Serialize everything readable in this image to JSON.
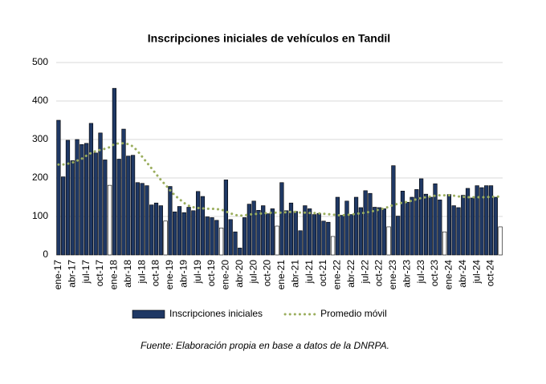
{
  "chart_data": {
    "type": "bar",
    "title": "Inscripciones iniciales de vehículos en Tandil",
    "source": "Fuente: Elaboración propia en base a datos de la DNRPA.",
    "categories": [
      "ene-17",
      null,
      null,
      "abr-17",
      null,
      null,
      "jul-17",
      null,
      null,
      "oct-17",
      null,
      null,
      "ene-18",
      null,
      null,
      "abr-18",
      null,
      null,
      "jul-18",
      null,
      null,
      "oct-18",
      null,
      null,
      "ene-19",
      null,
      null,
      "abr-19",
      null,
      null,
      "jul-19",
      null,
      null,
      "oct-19",
      null,
      null,
      "ene-20",
      null,
      null,
      "abr-20",
      null,
      null,
      "jul-20",
      null,
      null,
      "oct-20",
      null,
      null,
      "ene-21",
      null,
      null,
      "abr-21",
      null,
      null,
      "jul-21",
      null,
      null,
      "oct-21",
      null,
      null,
      "ene-22",
      null,
      null,
      "abr-22",
      null,
      null,
      "jul-22",
      null,
      null,
      "oct-22",
      null,
      null,
      "ene-23",
      null,
      null,
      "abr-23",
      null,
      null,
      "jul-23",
      null,
      null,
      "oct-23",
      null,
      null,
      "ene-24",
      null,
      null,
      "abr-24",
      null,
      null,
      "jul-24",
      null,
      null,
      "oct-24",
      null,
      null
    ],
    "series": [
      {
        "name": "Inscripciones iniciales",
        "type": "bar",
        "color": "#1f3864",
        "values": [
          350,
          203,
          298,
          245,
          300,
          287,
          290,
          342,
          265,
          317,
          247,
          181,
          433,
          249,
          327,
          257,
          259,
          188,
          186,
          180,
          130,
          135,
          128,
          88,
          178,
          112,
          126,
          110,
          124,
          115,
          165,
          152,
          99,
          97,
          90,
          70,
          195,
          92,
          60,
          18,
          97,
          132,
          140,
          116,
          128,
          107,
          120,
          75,
          188,
          115,
          135,
          113,
          63,
          128,
          120,
          105,
          108,
          88,
          85,
          48,
          150,
          103,
          140,
          105,
          150,
          123,
          167,
          160,
          124,
          123,
          120,
          73,
          232,
          101,
          166,
          137,
          150,
          170,
          198,
          158,
          150,
          185,
          143,
          60,
          157,
          128,
          123,
          155,
          173,
          148,
          180,
          175,
          180,
          180,
          150,
          73
        ],
        "colors": [
          "#1f3864",
          "#1f3864",
          "#1f3864",
          "#1f3864",
          "#1f3864",
          "#1f3864",
          "#1f3864",
          "#1f3864",
          "#1f3864",
          "#1f3864",
          "#1f3864",
          "#ffffff",
          "#1f3864",
          "#1f3864",
          "#1f3864",
          "#1f3864",
          "#1f3864",
          "#1f3864",
          "#1f3864",
          "#1f3864",
          "#1f3864",
          "#1f3864",
          "#1f3864",
          "#ffffff",
          "#1f3864",
          "#1f3864",
          "#1f3864",
          "#1f3864",
          "#1f3864",
          "#1f3864",
          "#1f3864",
          "#1f3864",
          "#1f3864",
          "#1f3864",
          "#1f3864",
          "#ffffff",
          "#1f3864",
          "#1f3864",
          "#1f3864",
          "#1f3864",
          "#1f3864",
          "#1f3864",
          "#1f3864",
          "#1f3864",
          "#1f3864",
          "#1f3864",
          "#1f3864",
          "#ffffff",
          "#1f3864",
          "#1f3864",
          "#1f3864",
          "#1f3864",
          "#1f3864",
          "#1f3864",
          "#1f3864",
          "#1f3864",
          "#1f3864",
          "#1f3864",
          "#1f3864",
          "#ffffff",
          "#1f3864",
          "#1f3864",
          "#1f3864",
          "#1f3864",
          "#1f3864",
          "#1f3864",
          "#1f3864",
          "#1f3864",
          "#1f3864",
          "#1f3864",
          "#1f3864",
          "#ffffff",
          "#1f3864",
          "#1f3864",
          "#1f3864",
          "#1f3864",
          "#1f3864",
          "#1f3864",
          "#1f3864",
          "#1f3864",
          "#1f3864",
          "#1f3864",
          "#1f3864",
          "#ffffff",
          "#1f3864",
          "#1f3864",
          "#1f3864",
          "#1f3864",
          "#1f3864",
          "#1f3864",
          "#1f3864",
          "#1f3864",
          "#1f3864",
          "#1f3864",
          "#1f3864",
          "#ffffff"
        ]
      },
      {
        "name": "Promedio móvil",
        "type": "line",
        "color": "#9bae5e",
        "values": [
          235,
          235,
          237,
          240,
          245,
          250,
          258,
          265,
          270,
          273,
          276,
          280,
          288,
          290,
          290,
          288,
          282,
          270,
          255,
          240,
          225,
          210,
          195,
          182,
          168,
          155,
          145,
          135,
          128,
          124,
          122,
          121,
          120,
          120,
          119,
          118,
          113,
          108,
          104,
          102,
          103,
          105,
          106,
          107,
          108,
          109,
          110,
          110,
          110,
          111,
          112,
          112,
          110,
          110,
          109,
          109,
          108,
          107,
          106,
          105,
          103,
          103,
          104,
          105,
          107,
          108,
          110,
          112,
          115,
          118,
          121,
          125,
          130,
          133,
          136,
          138,
          141,
          145,
          148,
          150,
          152,
          154,
          155,
          155,
          155,
          154,
          152,
          151,
          150,
          150,
          150,
          150,
          150,
          151,
          151,
          152
        ]
      }
    ],
    "ylim": [
      0,
      500
    ],
    "yticks": [
      0,
      100,
      200,
      300,
      400,
      500
    ],
    "grid": true,
    "legend": "bottom"
  }
}
